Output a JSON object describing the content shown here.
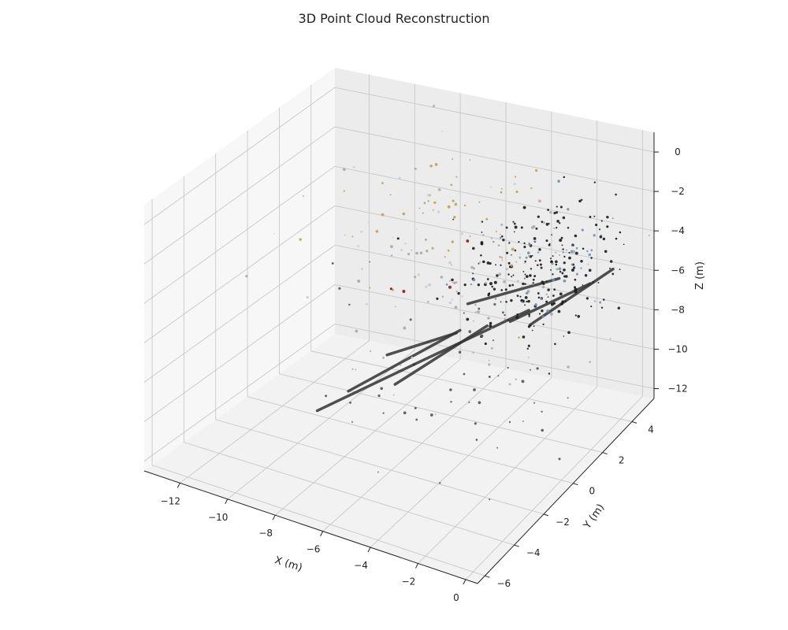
{
  "chart_data": {
    "type": "scatter",
    "title": "3D Point Cloud Reconstruction",
    "xlabel": "X (m)",
    "ylabel": "Y (m)",
    "zlabel": "Z (m)",
    "xlim": [
      -13.5,
      0.5
    ],
    "ylim": [
      -6.5,
      5.5
    ],
    "zlim": [
      -12.5,
      1
    ],
    "x_ticks": [
      -12,
      -10,
      -8,
      -6,
      -4,
      -2,
      0
    ],
    "y_ticks": [
      -6,
      -4,
      -2,
      0,
      2,
      4
    ],
    "z_ticks": [
      0,
      -2,
      -4,
      -6,
      -8,
      -10,
      -12
    ],
    "x_tick_labels": [
      "−12",
      "−10",
      "−8",
      "−6",
      "−4",
      "−2",
      "0"
    ],
    "y_tick_labels": [
      "−6",
      "−4",
      "−2",
      "0",
      "2",
      "4"
    ],
    "z_tick_labels": [
      "0",
      "−2",
      "−4",
      "−6",
      "−8",
      "−10",
      "−12"
    ],
    "grid": true,
    "projection": "3d",
    "colors": {
      "dark": "#1a1a1a",
      "gray": "#555555",
      "light_gray": "#aaaaaa",
      "steel_blue": "#6b8fb5",
      "pale_blue": "#bcd0e4",
      "gold": "#c8a04c",
      "pink": "#e89aa0",
      "crimson": "#8b1a1a"
    },
    "clusters": [
      {
        "color": "dark",
        "n": 220,
        "x": [
          -2.5,
          1.4
        ],
        "y": [
          2.5,
          1.4
        ],
        "z": [
          -4.5,
          1.2
        ]
      },
      {
        "color": "steel_blue",
        "n": 45,
        "x": [
          -2.5,
          1.3
        ],
        "y": [
          2.5,
          1.3
        ],
        "z": [
          -4.5,
          1.1
        ]
      },
      {
        "color": "gold",
        "n": 40,
        "x": [
          -7,
          2.5
        ],
        "y": [
          3,
          1.5
        ],
        "z": [
          -3,
          1.2
        ]
      },
      {
        "color": "light_gray",
        "n": 90,
        "x": [
          -5,
          3.5
        ],
        "y": [
          1.5,
          2.5
        ],
        "z": [
          -5,
          2.5
        ]
      },
      {
        "color": "pale_blue",
        "n": 30,
        "x": [
          -6,
          3
        ],
        "y": [
          2,
          2
        ],
        "z": [
          -3,
          1.5
        ]
      },
      {
        "color": "gray",
        "n": 50,
        "x": [
          -4,
          3
        ],
        "y": [
          -1,
          2.5
        ],
        "z": [
          -8,
          2
        ]
      },
      {
        "color": "pink",
        "n": 8,
        "x": [
          -5,
          2
        ],
        "y": [
          1,
          2
        ],
        "z": [
          -5,
          1.5
        ]
      },
      {
        "color": "crimson",
        "n": 6,
        "x": [
          -5,
          2
        ],
        "y": [
          1,
          2
        ],
        "z": [
          -5,
          1.5
        ]
      }
    ],
    "streaks": [
      {
        "from": [
          -6,
          3,
          -7.5
        ],
        "to": [
          -3,
          4.5,
          -6.5
        ]
      },
      {
        "from": [
          -7,
          1,
          -9.5
        ],
        "to": [
          -4,
          4,
          -8
        ]
      },
      {
        "from": [
          -8.5,
          -1,
          -10
        ],
        "to": [
          -6,
          2.5,
          -8.5
        ]
      },
      {
        "from": [
          -6.5,
          -1,
          -9
        ],
        "to": [
          -4.5,
          2,
          -7.5
        ]
      },
      {
        "from": [
          -9.5,
          -1.5,
          -11
        ],
        "to": [
          -7,
          1,
          -9.5
        ]
      },
      {
        "from": [
          -3.5,
          2,
          -7
        ],
        "to": [
          -1,
          3.5,
          -5.5
        ]
      },
      {
        "from": [
          -2,
          1,
          -6
        ],
        "to": [
          0,
          3.5,
          -4.5
        ]
      },
      {
        "from": [
          -7.5,
          0,
          -8.5
        ],
        "to": [
          -5.5,
          1.5,
          -7.8
        ]
      }
    ]
  }
}
